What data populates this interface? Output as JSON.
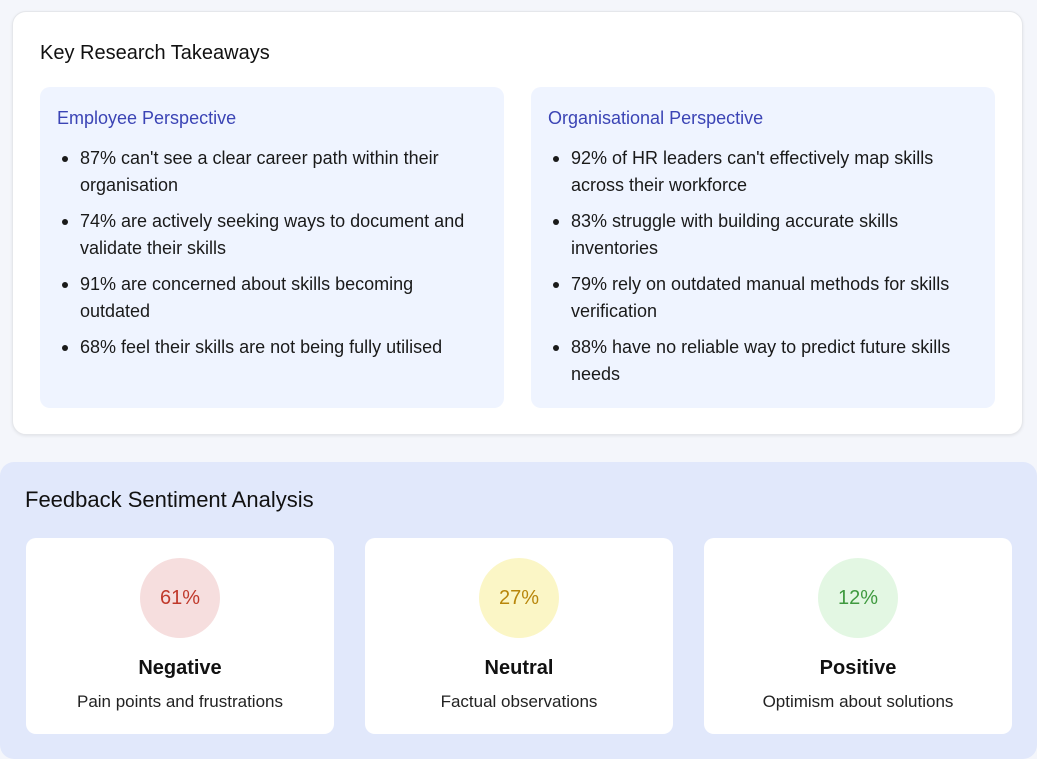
{
  "takeaways": {
    "title": "Key Research Takeaways",
    "employee": {
      "heading": "Employee Perspective",
      "items": [
        "87% can't see a clear career path within their organisation",
        "74% are actively seeking ways to document and validate their skills",
        "91% are concerned about skills becoming outdated",
        "68% feel their skills are not being fully utilised"
      ]
    },
    "organisational": {
      "heading": "Organisational Perspective",
      "items": [
        "92% of HR leaders can't effectively map skills across their workforce",
        "83% struggle with building accurate skills inventories",
        "79% rely on outdated manual methods for skills verification",
        "88% have no reliable way to predict future skills needs"
      ]
    }
  },
  "sentiment": {
    "title": "Feedback Sentiment Analysis",
    "cards": [
      {
        "percent": "61%",
        "label": "Negative",
        "description": "Pain points and frustrations",
        "color": "#c0392b",
        "bg": "#f6dede"
      },
      {
        "percent": "27%",
        "label": "Neutral",
        "description": "Factual observations",
        "color": "#b8860b",
        "bg": "#fbf6c6"
      },
      {
        "percent": "12%",
        "label": "Positive",
        "description": "Optimism about solutions",
        "color": "#3f9a3f",
        "bg": "#e3f7e3"
      }
    ]
  }
}
